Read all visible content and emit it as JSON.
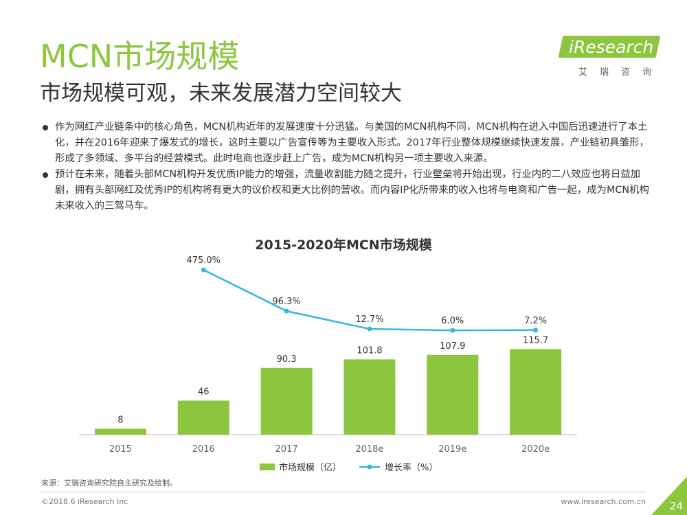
{
  "header": {
    "title": "MCN市场规模",
    "subtitle": "市场规模可观，未来发展潜力空间较大"
  },
  "logo": {
    "brand": "iResearch",
    "cn": "艾瑞咨询",
    "color": "#8cc63e"
  },
  "bullets": [
    "作为网红产业链条中的核心角色，MCN机构近年的发展速度十分迅猛。与美国的MCN机构不同，MCN机构在进入中国后迅速进行了本土化，并在2016年迎来了爆发式的增长，这时主要以广告宣传等为主要收入形式。2017年行业整体规模继续快速发展，产业链初具雏形，形成了多领域、多平台的经营模式。此时电商也逐步赶上广告，成为MCN机构另一项主要收入来源。",
    "预计在未来，随着头部MCN机构开发优质IP能力的增强，流量收割能力随之提升，行业壁垒将开始出现，行业内的二八效应也将日益加剧，拥有头部网红及优秀IP的机构将有更大的议价权和更大比例的营收。而内容IP化所带来的收入也将与电商和广告一起，成为MCN机构未来收入的三驾马车。"
  ],
  "chart_data": {
    "type": "bar",
    "title": "2015-2020年MCN市场规模",
    "categories": [
      "2015",
      "2016",
      "2017",
      "2018e",
      "2019e",
      "2020e"
    ],
    "series": [
      {
        "name": "市场规模（亿）",
        "type": "bar",
        "color": "#8cc63e",
        "values": [
          8,
          46,
          90.3,
          101.8,
          107.9,
          115.7
        ],
        "labels": [
          "8",
          "46",
          "90.3",
          "101.8",
          "107.9",
          "115.7"
        ]
      },
      {
        "name": "增长率（%）",
        "type": "line",
        "color": "#35b7e0",
        "values": [
          null,
          475.0,
          96.3,
          12.7,
          6.0,
          7.2
        ],
        "labels": [
          "",
          "475.0%",
          "96.3%",
          "12.7%",
          "6.0%",
          "7.2%"
        ]
      }
    ],
    "legend": "bottom",
    "grid": false
  },
  "footer": {
    "source": "来源：艾瑞咨询研究院自主研究及绘制。",
    "copyright": "©2018.6 iResearch Inc",
    "website": "www.iresearch.com.cn",
    "page": "24"
  }
}
